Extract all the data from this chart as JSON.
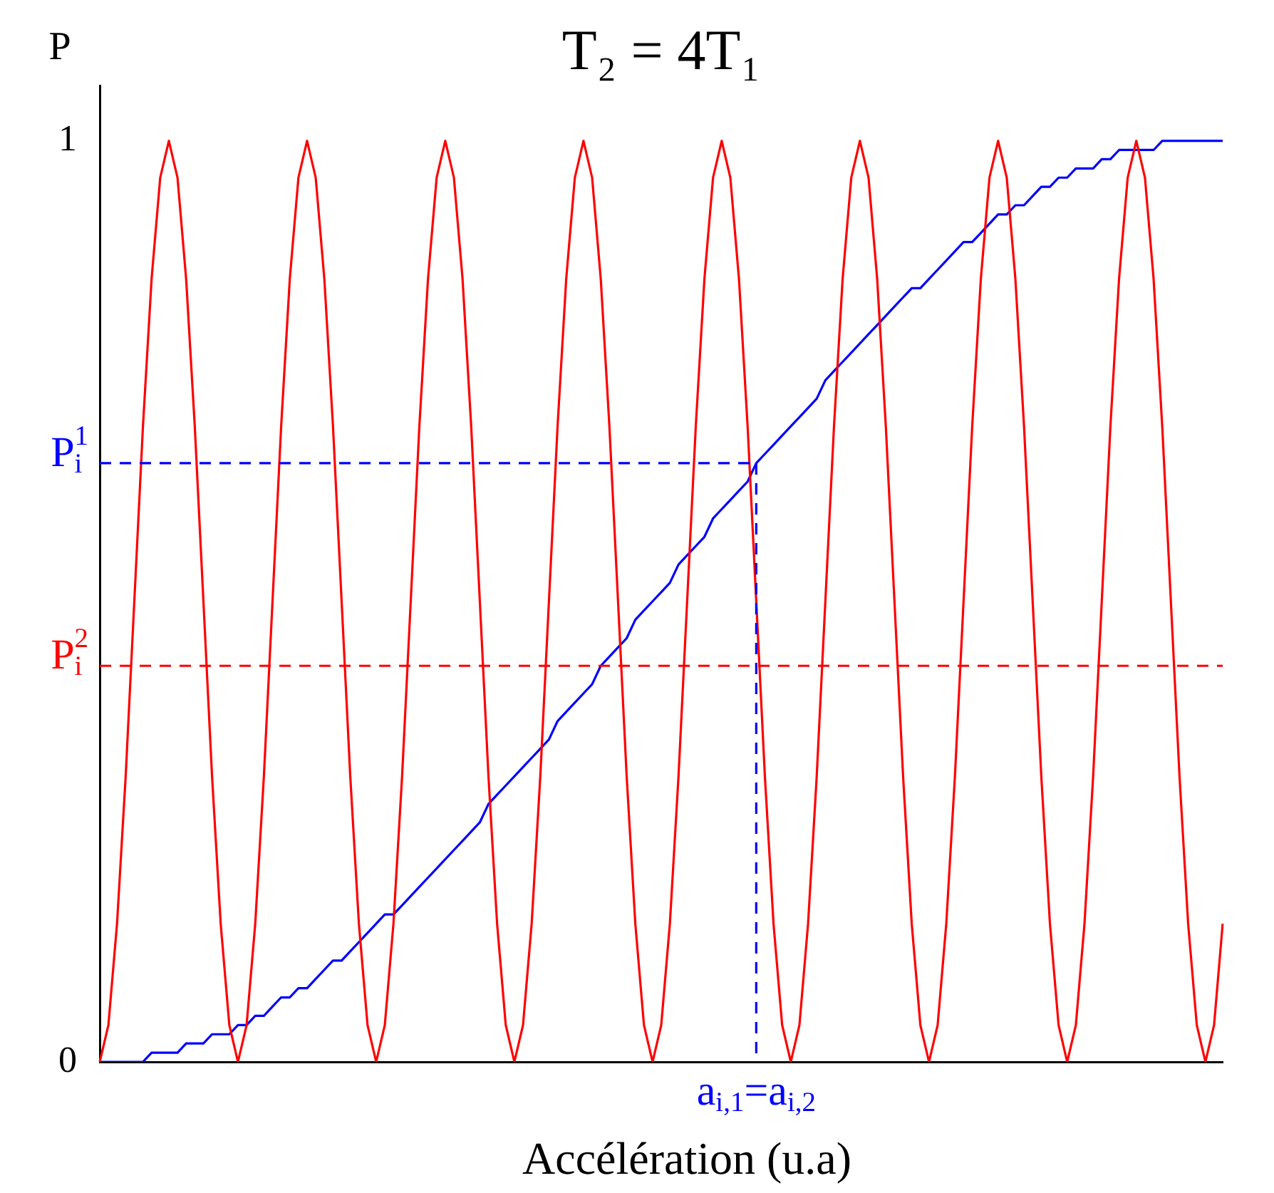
{
  "chart_data": {
    "type": "line",
    "title": "T₂ = 4T₁",
    "ylabel": "P",
    "xlabel": "Accélération (u.a)",
    "categories": [
      null,
      null,
      null,
      null,
      null,
      null,
      null,
      null,
      null,
      null,
      null,
      null,
      null,
      null,
      null,
      null,
      null,
      null,
      null,
      null,
      null,
      null,
      null,
      null,
      null,
      null,
      null,
      null,
      null,
      null,
      null,
      null,
      null,
      null,
      null,
      null,
      null,
      null,
      null,
      null,
      null,
      null,
      null,
      null,
      null,
      null,
      null,
      null,
      null,
      null,
      null,
      null,
      null,
      null,
      null,
      null,
      null,
      null,
      null,
      null,
      null,
      null,
      null,
      null,
      null,
      null,
      null,
      null,
      null,
      null,
      null,
      null,
      null,
      null,
      null,
      null,
      null,
      null,
      null,
      null,
      null,
      null,
      null,
      null,
      null,
      null,
      null,
      null,
      null,
      null,
      null,
      null,
      null,
      null,
      null,
      null,
      null,
      null,
      null,
      null,
      null,
      null,
      null,
      null,
      null,
      null,
      null,
      null,
      null,
      null,
      null,
      null,
      null,
      null,
      null,
      null,
      null,
      null,
      null,
      null,
      null,
      null,
      null,
      null,
      null,
      null,
      null,
      null,
      null,
      null,
      null
    ],
    "series": [
      {
        "color": "#ff0000",
        "values": [
          0,
          0.04,
          0.15,
          0.31,
          0.5,
          0.69,
          0.85,
          0.96,
          1,
          0.96,
          0.85,
          0.69,
          0.5,
          0.31,
          0.15,
          0.04,
          0,
          0.04,
          0.15,
          0.31,
          0.5,
          0.69,
          0.85,
          0.96,
          1,
          0.96,
          0.85,
          0.69,
          0.5,
          0.31,
          0.15,
          0.04,
          0,
          0.04,
          0.15,
          0.31,
          0.5,
          0.69,
          0.85,
          0.96,
          1,
          0.96,
          0.85,
          0.69,
          0.5,
          0.31,
          0.15,
          0.04,
          0,
          0.04,
          0.15,
          0.31,
          0.5,
          0.69,
          0.85,
          0.96,
          1,
          0.96,
          0.85,
          0.69,
          0.5,
          0.31,
          0.15,
          0.04,
          0,
          0.04,
          0.15,
          0.31,
          0.5,
          0.69,
          0.85,
          0.96,
          1,
          0.96,
          0.85,
          0.69,
          0.5,
          0.31,
          0.15,
          0.04,
          0,
          0.04,
          0.15,
          0.31,
          0.5,
          0.69,
          0.85,
          0.96,
          1,
          0.96,
          0.85,
          0.69,
          0.5,
          0.31,
          0.15,
          0.04,
          0,
          0.04,
          0.15,
          0.31,
          0.5,
          0.69,
          0.85,
          0.96,
          1,
          0.96,
          0.85,
          0.69,
          0.5,
          0.31,
          0.15,
          0.04,
          0,
          0.04,
          0.15,
          0.31,
          0.5,
          0.69,
          0.85,
          0.96,
          1,
          0.96,
          0.85,
          0.69,
          0.5,
          0.31,
          0.15,
          0.04,
          0,
          0.04,
          0.15
        ]
      },
      {
        "color": "#0000ff",
        "values": [
          0,
          0,
          0,
          0,
          0,
          0,
          0.01,
          0.01,
          0.01,
          0.01,
          0.02,
          0.02,
          0.02,
          0.03,
          0.03,
          0.03,
          0.04,
          0.04,
          0.05,
          0.05,
          0.06,
          0.07,
          0.07,
          0.08,
          0.08,
          0.09,
          0.1,
          0.11,
          0.11,
          0.12,
          0.13,
          0.14,
          0.15,
          0.16,
          0.16,
          0.17,
          0.18,
          0.19,
          0.2,
          0.21,
          0.22,
          0.23,
          0.24,
          0.25,
          0.26,
          0.28,
          0.29,
          0.3,
          0.31,
          0.32,
          0.33,
          0.34,
          0.35,
          0.37,
          0.38,
          0.39,
          0.4,
          0.41,
          0.43,
          0.44,
          0.45,
          0.46,
          0.48,
          0.49,
          0.5,
          0.51,
          0.52,
          0.54,
          0.55,
          0.56,
          0.57,
          0.59,
          0.6,
          0.61,
          0.62,
          0.63,
          0.65,
          0.66,
          0.67,
          0.68,
          0.69,
          0.7,
          0.71,
          0.72,
          0.74,
          0.75,
          0.76,
          0.77,
          0.78,
          0.79,
          0.8,
          0.81,
          0.82,
          0.83,
          0.84,
          0.84,
          0.85,
          0.86,
          0.87,
          0.88,
          0.89,
          0.89,
          0.9,
          0.91,
          0.92,
          0.92,
          0.93,
          0.93,
          0.94,
          0.95,
          0.95,
          0.96,
          0.96,
          0.97,
          0.97,
          0.97,
          0.98,
          0.98,
          0.99,
          0.99,
          0.99,
          0.99,
          0.99,
          1,
          1,
          1,
          1,
          1,
          1,
          1,
          1
        ]
      }
    ],
    "ylim": [
      0,
      1.06
    ],
    "yticks": [
      0,
      1
    ],
    "tick_labels": "y",
    "grid": false,
    "legend": false,
    "ref_lines": [
      {
        "axis": "y",
        "value": 0.65,
        "label": "P$_{i}$$^{1}$",
        "color": "#0000ff",
        "line_style": "dashed"
      },
      {
        "axis": "y",
        "value": 0.43,
        "label": "P$_{i}$$^{2}$",
        "color": "#ff0000",
        "line_style": "dashed"
      }
    ],
    "annotations": [
      "a$_{i,1}$=a$_{i,2}$"
    ]
  }
}
